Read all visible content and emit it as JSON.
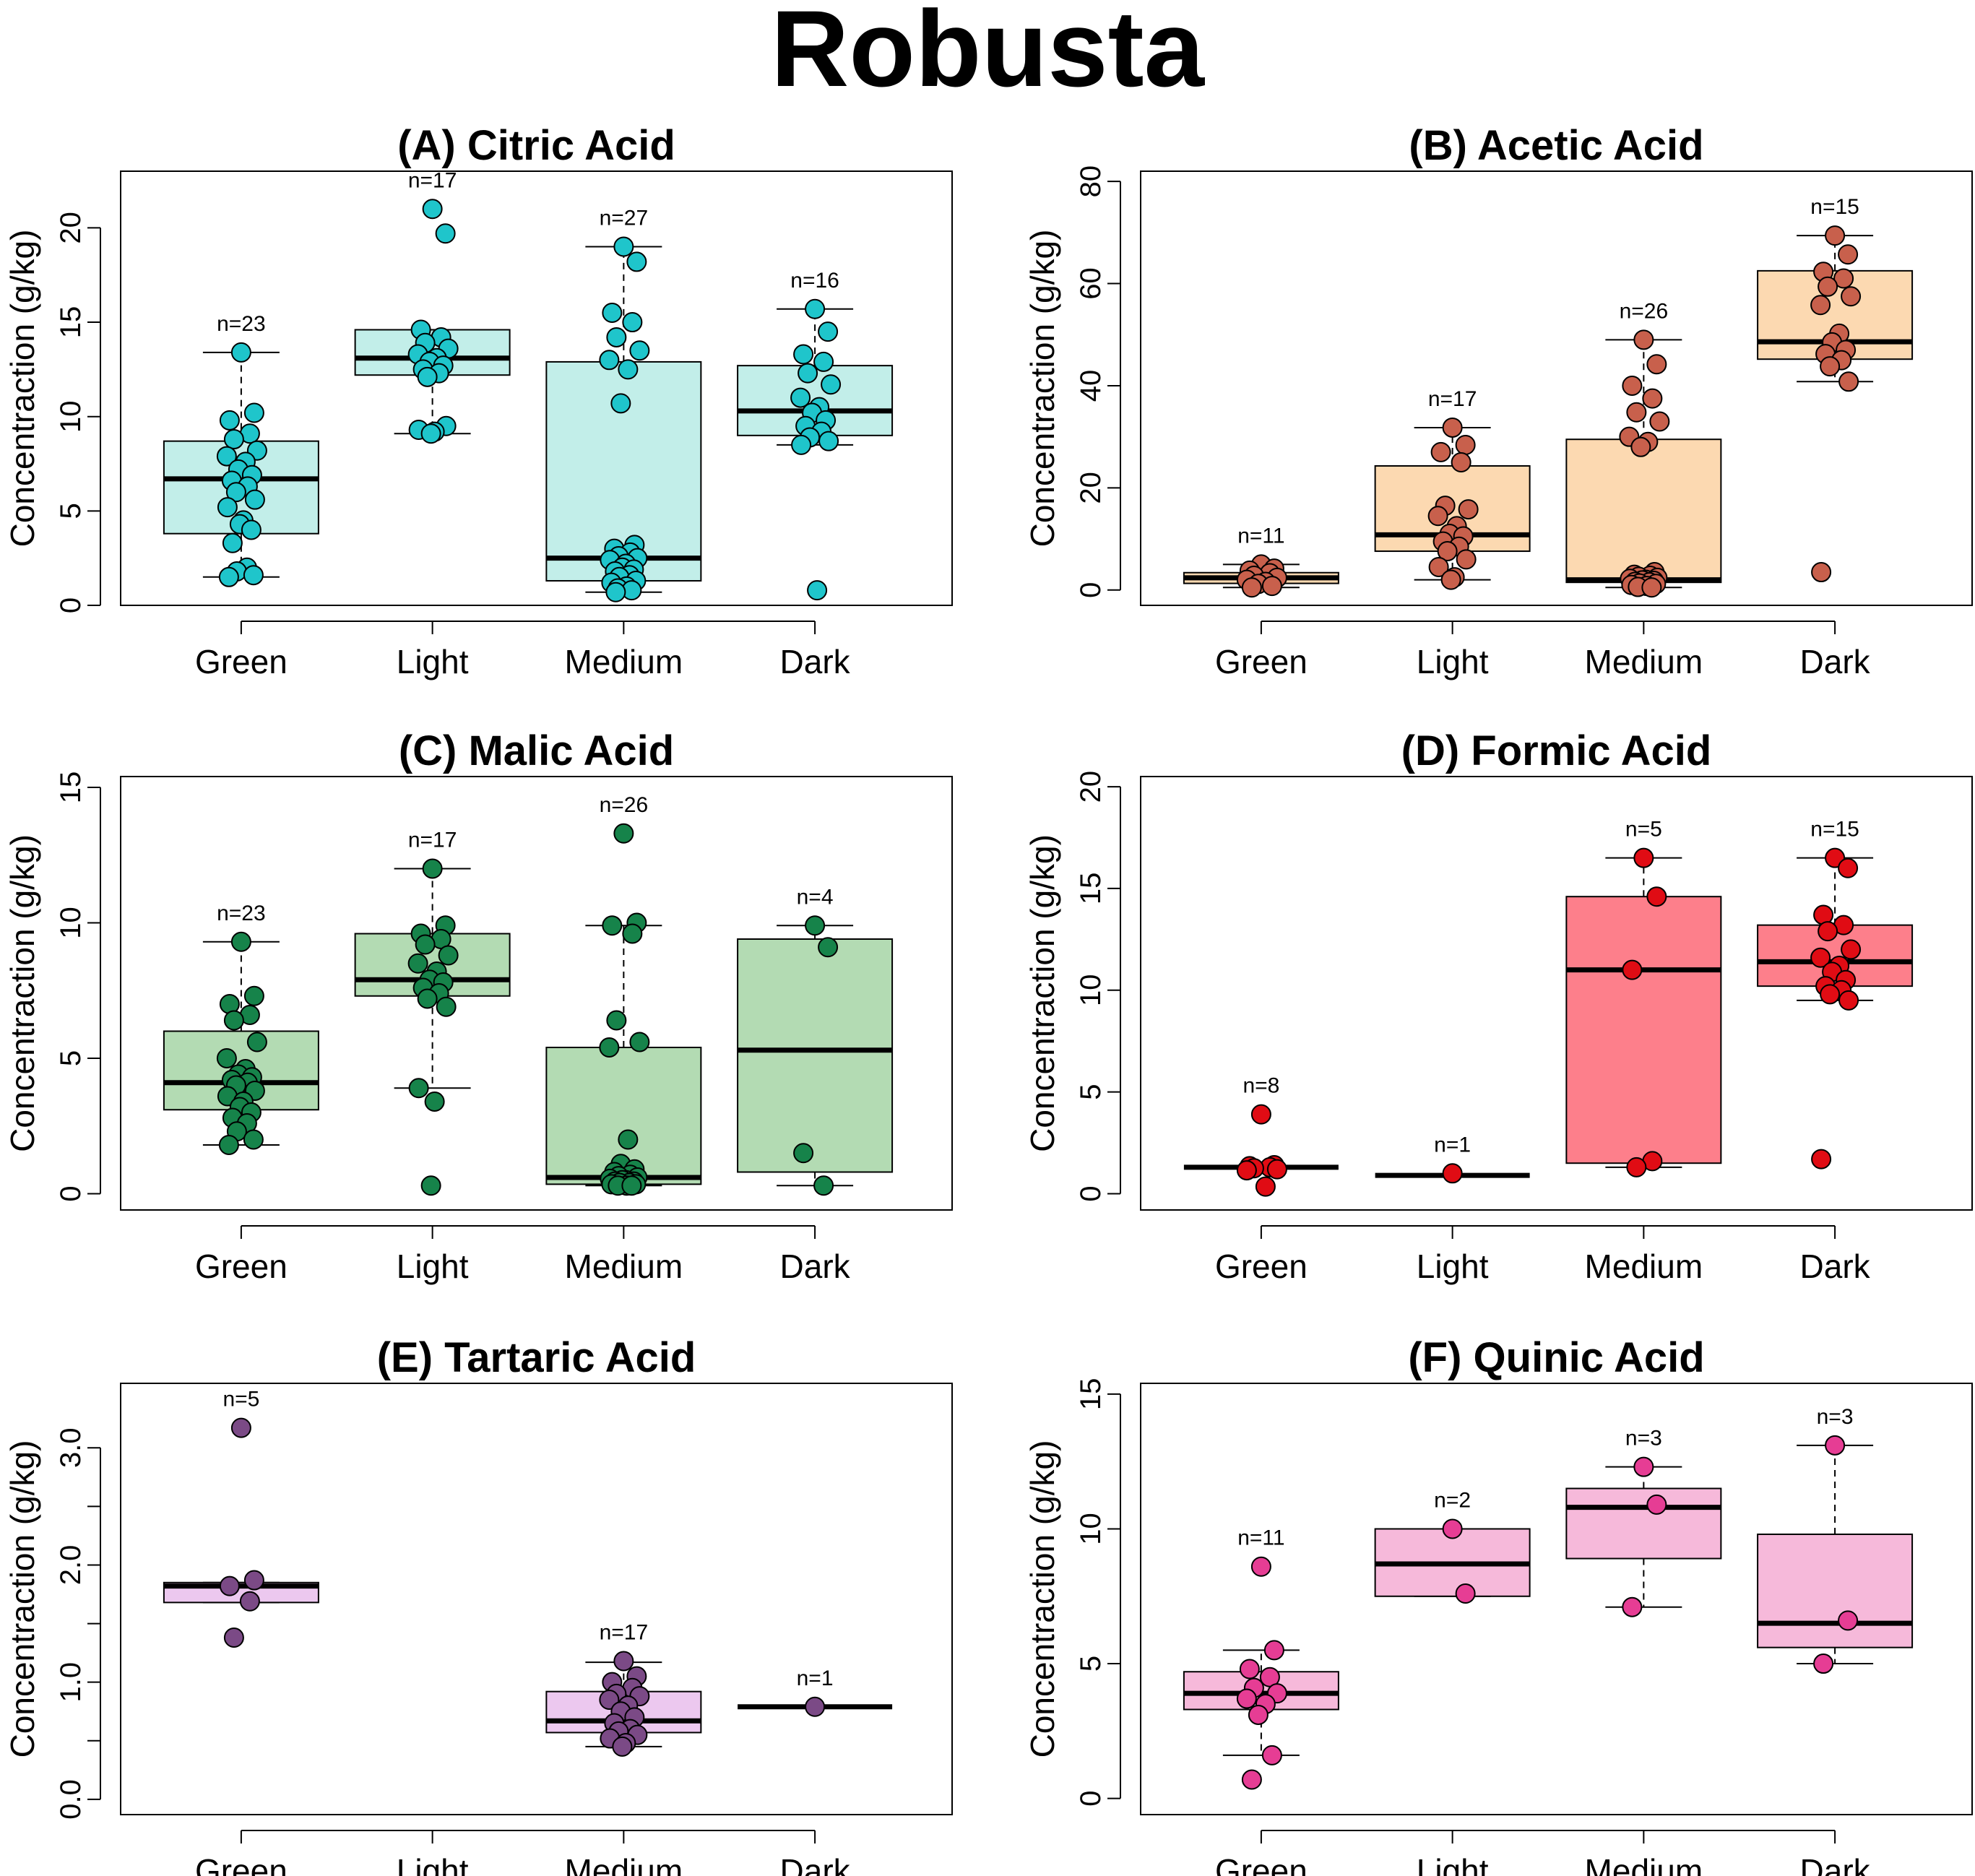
{
  "figure": {
    "title": "Robusta"
  },
  "chart_data": [
    {
      "type": "box",
      "title": "(A) Citric Acid",
      "ylabel": "Concentraction (g/kg)",
      "categories": [
        "Green",
        "Light",
        "Medium",
        "Dark"
      ],
      "ylim": [
        0,
        23
      ],
      "yticks": [
        0,
        5,
        10,
        15,
        20
      ],
      "ytick_labels": [
        "0",
        "5",
        "10",
        "15",
        "20"
      ],
      "box_color": "#c2eee9",
      "point_color": "#1fc5cb",
      "groups": [
        {
          "category": "Green",
          "n_label": "n=23",
          "stats": {
            "whisker_low": 1.5,
            "q1": 3.8,
            "median": 6.7,
            "q3": 8.7,
            "whisker_high": 13.4
          },
          "points": [
            13.4,
            10.2,
            9.8,
            9.1,
            8.8,
            8.2,
            7.9,
            7.6,
            7.2,
            6.9,
            6.6,
            6.3,
            6.0,
            5.6,
            5.2,
            4.5,
            4.3,
            4.0,
            3.3,
            2.0,
            1.8,
            1.6,
            1.5
          ]
        },
        {
          "category": "Light",
          "n_label": "n=17",
          "stats": {
            "whisker_low": 9.1,
            "q1": 12.2,
            "median": 13.1,
            "q3": 14.6,
            "whisker_high": 14.6
          },
          "points": [
            21.0,
            19.7,
            14.6,
            14.2,
            13.9,
            13.6,
            13.3,
            13.1,
            12.9,
            12.7,
            12.5,
            12.3,
            12.1,
            9.5,
            9.3,
            9.2,
            9.1
          ]
        },
        {
          "category": "Medium",
          "n_label": "n=27",
          "stats": {
            "whisker_low": 0.7,
            "q1": 1.3,
            "median": 2.5,
            "q3": 12.9,
            "whisker_high": 19.0
          },
          "points": [
            19.0,
            18.2,
            15.5,
            15.0,
            14.2,
            13.5,
            13.0,
            12.5,
            10.7,
            3.2,
            3.0,
            2.8,
            2.6,
            2.5,
            2.4,
            2.2,
            2.0,
            1.9,
            1.8,
            1.6,
            1.5,
            1.3,
            1.2,
            1.0,
            0.9,
            0.8,
            0.7
          ]
        },
        {
          "category": "Dark",
          "n_label": "n=16",
          "stats": {
            "whisker_low": 8.5,
            "q1": 9.0,
            "median": 10.3,
            "q3": 12.7,
            "whisker_high": 15.7
          },
          "points": [
            15.7,
            14.5,
            13.3,
            12.9,
            12.3,
            11.7,
            11.0,
            10.5,
            10.2,
            9.8,
            9.5,
            9.2,
            8.9,
            8.7,
            8.5,
            0.8
          ]
        }
      ]
    },
    {
      "type": "box",
      "title": "(B) Acetic Acid",
      "ylabel": "Concentraction (g/kg)",
      "categories": [
        "Green",
        "Light",
        "Medium",
        "Dark"
      ],
      "ylim": [
        -3,
        82
      ],
      "yticks": [
        0,
        20,
        40,
        60,
        80
      ],
      "ytick_labels": [
        "0",
        "20",
        "40",
        "60",
        "80"
      ],
      "box_color": "#fcd9b1",
      "point_color": "#c8604c",
      "groups": [
        {
          "category": "Green",
          "n_label": "n=11",
          "stats": {
            "whisker_low": 0.5,
            "q1": 1.3,
            "median": 2.4,
            "q3": 3.4,
            "whisker_high": 5.0
          },
          "points": [
            5.0,
            4.2,
            3.8,
            3.3,
            2.8,
            2.4,
            2.0,
            1.6,
            1.2,
            0.8,
            0.5
          ]
        },
        {
          "category": "Light",
          "n_label": "n=17",
          "stats": {
            "whisker_low": 2.0,
            "q1": 7.6,
            "median": 10.8,
            "q3": 24.3,
            "whisker_high": 31.8
          },
          "points": [
            31.8,
            28.4,
            27.0,
            25.0,
            16.5,
            15.8,
            14.5,
            12.5,
            11.0,
            10.5,
            9.5,
            8.5,
            7.6,
            6.0,
            4.5,
            2.5,
            2.0
          ]
        },
        {
          "category": "Medium",
          "n_label": "n=26",
          "stats": {
            "whisker_low": 0.5,
            "q1": 1.5,
            "median": 2.0,
            "q3": 29.5,
            "whisker_high": 49.0
          },
          "points": [
            49.0,
            44.2,
            40.0,
            37.5,
            34.8,
            33.0,
            30.0,
            29.0,
            28.0,
            3.5,
            3.0,
            2.8,
            2.6,
            2.4,
            2.2,
            2.0,
            1.9,
            1.8,
            1.6,
            1.5,
            1.3,
            1.2,
            1.0,
            0.8,
            0.6,
            0.5
          ]
        },
        {
          "category": "Dark",
          "n_label": "n=15",
          "stats": {
            "whisker_low": 40.8,
            "q1": 45.2,
            "median": 48.6,
            "q3": 62.5,
            "whisker_high": 69.4
          },
          "points": [
            69.4,
            65.7,
            62.3,
            61.0,
            59.4,
            57.5,
            55.8,
            50.2,
            48.5,
            47.0,
            46.2,
            45.0,
            43.8,
            40.8,
            3.5
          ]
        }
      ]
    },
    {
      "type": "box",
      "title": "(C) Malic Acid",
      "ylabel": "Concentraction (g/kg)",
      "categories": [
        "Green",
        "Light",
        "Medium",
        "Dark"
      ],
      "ylim": [
        -0.6,
        15.4
      ],
      "yticks": [
        0,
        5,
        10,
        15
      ],
      "ytick_labels": [
        "0",
        "5",
        "10",
        "15"
      ],
      "box_color": "#b3dbb3",
      "point_color": "#16834a",
      "groups": [
        {
          "category": "Green",
          "n_label": "n=23",
          "stats": {
            "whisker_low": 1.8,
            "q1": 3.1,
            "median": 4.1,
            "q3": 6.0,
            "whisker_high": 9.3
          },
          "points": [
            9.3,
            7.3,
            7.0,
            6.6,
            6.4,
            5.6,
            5.0,
            4.6,
            4.4,
            4.3,
            4.2,
            4.1,
            4.0,
            3.8,
            3.6,
            3.4,
            3.2,
            3.0,
            2.8,
            2.6,
            2.3,
            2.0,
            1.8
          ]
        },
        {
          "category": "Light",
          "n_label": "n=17",
          "stats": {
            "whisker_low": 3.9,
            "q1": 7.3,
            "median": 7.9,
            "q3": 9.6,
            "whisker_high": 12.0
          },
          "points": [
            12.0,
            9.9,
            9.6,
            9.4,
            9.2,
            8.8,
            8.5,
            8.2,
            7.9,
            7.8,
            7.6,
            7.4,
            7.2,
            6.9,
            3.9,
            3.4,
            0.3
          ]
        },
        {
          "category": "Medium",
          "n_label": "n=26",
          "stats": {
            "whisker_low": 0.3,
            "q1": 0.35,
            "median": 0.6,
            "q3": 5.4,
            "whisker_high": 9.9
          },
          "points": [
            13.3,
            10.0,
            9.9,
            9.6,
            6.4,
            5.6,
            5.4,
            2.0,
            1.1,
            0.9,
            0.8,
            0.7,
            0.65,
            0.6,
            0.55,
            0.5,
            0.5,
            0.45,
            0.45,
            0.4,
            0.4,
            0.35,
            0.35,
            0.3,
            0.3,
            0.3
          ]
        },
        {
          "category": "Dark",
          "n_label": "n=4",
          "stats": {
            "whisker_low": 0.3,
            "q1": 0.8,
            "median": 5.3,
            "q3": 9.4,
            "whisker_high": 9.9
          },
          "points": [
            9.9,
            9.1,
            1.5,
            0.3
          ]
        }
      ]
    },
    {
      "type": "box",
      "title": "(D) Formic Acid",
      "ylabel": "Concentraction (g/kg)",
      "categories": [
        "Green",
        "Light",
        "Medium",
        "Dark"
      ],
      "ylim": [
        -0.8,
        20.5
      ],
      "yticks": [
        0,
        5,
        10,
        15,
        20
      ],
      "ytick_labels": [
        "0",
        "5",
        "10",
        "15",
        "20"
      ],
      "box_color": "#fd7f8b",
      "point_color": "#e00c14",
      "groups": [
        {
          "category": "Green",
          "n_label": "n=8",
          "stats": {
            "whisker_low": 1.3,
            "q1": 1.3,
            "median": 1.3,
            "q3": 1.3,
            "whisker_high": 1.3
          },
          "points": [
            3.9,
            1.4,
            1.35,
            1.3,
            1.25,
            1.2,
            1.15,
            0.35
          ]
        },
        {
          "category": "Light",
          "n_label": "n=1",
          "stats": {
            "whisker_low": 0.9,
            "q1": 0.9,
            "median": 0.9,
            "q3": 0.9,
            "whisker_high": 0.9
          },
          "points": [
            1.0
          ]
        },
        {
          "category": "Medium",
          "n_label": "n=5",
          "stats": {
            "whisker_low": 1.3,
            "q1": 1.5,
            "median": 11.0,
            "q3": 14.6,
            "whisker_high": 16.5
          },
          "points": [
            16.5,
            14.6,
            11.0,
            1.6,
            1.3
          ]
        },
        {
          "category": "Dark",
          "n_label": "n=15",
          "stats": {
            "whisker_low": 9.5,
            "q1": 10.2,
            "median": 11.4,
            "q3": 13.2,
            "whisker_high": 16.5
          },
          "points": [
            16.5,
            16.0,
            13.7,
            13.2,
            12.9,
            12.0,
            11.6,
            11.2,
            10.9,
            10.5,
            10.2,
            10.0,
            9.8,
            9.5,
            1.7
          ]
        }
      ]
    },
    {
      "type": "box",
      "title": "(E) Tartaric Acid",
      "ylabel": "Concentraction (g/kg)",
      "categories": [
        "Green",
        "Light",
        "Medium",
        "Dark"
      ],
      "ylim": [
        -0.13,
        3.55
      ],
      "yticks": [
        0.0,
        0.5,
        1.0,
        1.5,
        2.0,
        2.5,
        3.0
      ],
      "ytick_labels": [
        "0.0",
        "",
        "1.0",
        "",
        "2.0",
        "",
        "3.0"
      ],
      "box_color": "#ecc8ef",
      "point_color": "#7b4a86",
      "groups": [
        {
          "category": "Green",
          "n_label": "n=5",
          "stats": {
            "whisker_low": 1.68,
            "q1": 1.68,
            "median": 1.82,
            "q3": 1.85,
            "whisker_high": 1.85
          },
          "points": [
            3.17,
            1.87,
            1.82,
            1.69,
            1.38
          ]
        },
        {
          "category": "Light",
          "n_label": "",
          "stats": null,
          "points": []
        },
        {
          "category": "Medium",
          "n_label": "n=17",
          "stats": {
            "whisker_low": 0.45,
            "q1": 0.57,
            "median": 0.67,
            "q3": 0.92,
            "whisker_high": 1.17
          },
          "points": [
            1.18,
            1.05,
            1.0,
            0.95,
            0.9,
            0.88,
            0.85,
            0.8,
            0.75,
            0.7,
            0.65,
            0.6,
            0.58,
            0.55,
            0.52,
            0.48,
            0.45
          ]
        },
        {
          "category": "Dark",
          "n_label": "n=1",
          "stats": {
            "whisker_low": 0.79,
            "q1": 0.79,
            "median": 0.79,
            "q3": 0.79,
            "whisker_high": 0.79
          },
          "points": [
            0.79
          ]
        }
      ]
    },
    {
      "type": "box",
      "title": "(F) Quinic Acid",
      "ylabel": "Concentraction (g/kg)",
      "categories": [
        "Green",
        "Light",
        "Medium",
        "Dark"
      ],
      "ylim": [
        -0.6,
        15.4
      ],
      "yticks": [
        0,
        5,
        10,
        15
      ],
      "ytick_labels": [
        "0",
        "5",
        "10",
        "15"
      ],
      "box_color": "#f6b9da",
      "point_color": "#e63d94",
      "groups": [
        {
          "category": "Green",
          "n_label": "n=11",
          "stats": {
            "whisker_low": 1.6,
            "q1": 3.3,
            "median": 3.9,
            "q3": 4.7,
            "whisker_high": 5.5
          },
          "points": [
            8.6,
            5.5,
            4.8,
            4.5,
            4.1,
            3.9,
            3.7,
            3.5,
            3.1,
            1.6,
            0.7
          ]
        },
        {
          "category": "Light",
          "n_label": "n=2",
          "stats": {
            "whisker_low": 7.5,
            "q1": 7.5,
            "median": 8.7,
            "q3": 10.0,
            "whisker_high": 10.0
          },
          "points": [
            10.0,
            7.6
          ]
        },
        {
          "category": "Medium",
          "n_label": "n=3",
          "stats": {
            "whisker_low": 7.1,
            "q1": 8.9,
            "median": 10.8,
            "q3": 11.5,
            "whisker_high": 12.3
          },
          "points": [
            12.3,
            10.9,
            7.1
          ]
        },
        {
          "category": "Dark",
          "n_label": "n=3",
          "stats": {
            "whisker_low": 5.0,
            "q1": 5.6,
            "median": 6.5,
            "q3": 9.8,
            "whisker_high": 13.1
          },
          "points": [
            13.1,
            6.6,
            5.0
          ]
        }
      ]
    }
  ]
}
